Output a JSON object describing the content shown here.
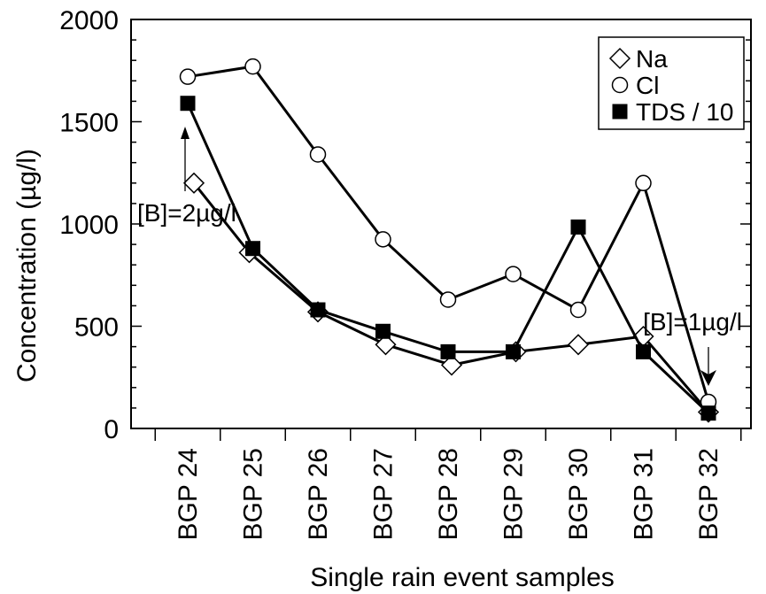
{
  "chart_data": {
    "type": "line",
    "title": "",
    "xlabel": "Single rain event samples",
    "ylabel": "Concentration (µg/l)",
    "ylim": [
      0,
      2000
    ],
    "yticks": [
      0,
      500,
      1000,
      1500,
      2000
    ],
    "categories": [
      "BGP 24",
      "BGP 25",
      "BGP 26",
      "BGP 27",
      "BGP 28",
      "BGP 29",
      "BGP 30",
      "BGP 31",
      "BGP 32"
    ],
    "grid": false,
    "legend_position": "top-right",
    "series": [
      {
        "name": "Na",
        "marker": "open-diamond",
        "values": [
          1200,
          860,
          570,
          410,
          310,
          375,
          410,
          450,
          80
        ]
      },
      {
        "name": "Cl",
        "marker": "open-circle",
        "values": [
          1720,
          1770,
          1340,
          925,
          630,
          755,
          580,
          1200,
          130
        ]
      },
      {
        "name": "TDS / 10",
        "marker": "filled-square",
        "values": [
          1590,
          880,
          580,
          475,
          375,
          375,
          985,
          375,
          75
        ]
      }
    ],
    "annotations": [
      {
        "text": "[B]=2µg/l",
        "category": "BGP 24",
        "arrow": "up"
      },
      {
        "text": "[B]=1µg/l",
        "category": "BGP 32",
        "arrow": "down"
      }
    ]
  }
}
